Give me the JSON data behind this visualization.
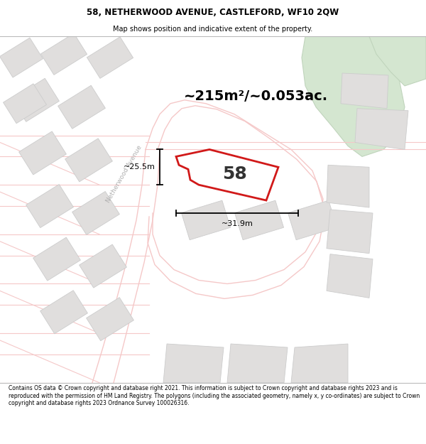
{
  "title": "58, NETHERWOOD AVENUE, CASTLEFORD, WF10 2QW",
  "subtitle": "Map shows position and indicative extent of the property.",
  "area_label": "~215m²/~0.053ac.",
  "plot_number": "58",
  "dim_width": "~31.9m",
  "dim_height": "~25.5m",
  "street_name": "Netherwood Avenue",
  "footer": "Contains OS data © Crown copyright and database right 2021. This information is subject to Crown copyright and database rights 2023 and is reproduced with the permission of HM Land Registry. The polygons (including the associated geometry, namely x, y co-ordinates) are subject to Crown copyright and database rights 2023 Ordnance Survey 100026316.",
  "map_bg": "#f7f5f3",
  "road_color": "#f5c8c8",
  "plot_outline_color": "#cc0000",
  "building_color": "#e0dedd",
  "building_edge": "#cccccc",
  "green_color": "#d4e6d0",
  "green_edge": "#c0d4bc",
  "figsize": [
    6.0,
    6.25
  ],
  "dpi": 100
}
